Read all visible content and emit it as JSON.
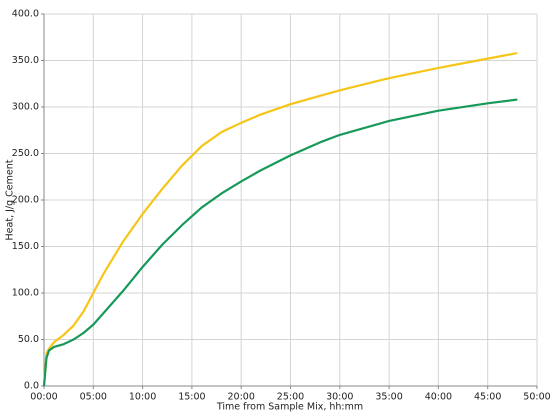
{
  "chart_data": {
    "type": "line",
    "x_label": "Time from Sample Mix, hh:mm",
    "y_label": "Heat, J/g Cement",
    "x": [
      0,
      0.25,
      0.5,
      1,
      2,
      3,
      4,
      5,
      6,
      8,
      10,
      12,
      14,
      16,
      18,
      20,
      22,
      25,
      28,
      30,
      35,
      40,
      45,
      48
    ],
    "series": [
      {
        "color": "#f5c518",
        "values": [
          0,
          35,
          40,
          47,
          55,
          65,
          80,
          100,
          120,
          155,
          185,
          212,
          237,
          258,
          273,
          283,
          292,
          303,
          312,
          318,
          331,
          342,
          352,
          358
        ]
      },
      {
        "color": "#17995a",
        "values": [
          0,
          30,
          38,
          42,
          45,
          50,
          57,
          66,
          78,
          102,
          128,
          152,
          173,
          192,
          207,
          220,
          232,
          248,
          262,
          270,
          285,
          296,
          304,
          308
        ]
      }
    ],
    "xlim": [
      0,
      50
    ],
    "xticks": [
      {
        "value": 0,
        "label": "00:00"
      },
      {
        "value": 5,
        "label": "05:00"
      },
      {
        "value": 10,
        "label": "10:00"
      },
      {
        "value": 15,
        "label": "15:00"
      },
      {
        "value": 20,
        "label": "20:00"
      },
      {
        "value": 25,
        "label": "25:00"
      },
      {
        "value": 30,
        "label": "30:00"
      },
      {
        "value": 35,
        "label": "35:00"
      },
      {
        "value": 40,
        "label": "40:00"
      },
      {
        "value": 45,
        "label": "45:00"
      },
      {
        "value": 50,
        "label": "50:00"
      }
    ],
    "ylim": [
      0,
      400
    ],
    "yticks": [
      {
        "value": 0,
        "label": "0.0"
      },
      {
        "value": 50,
        "label": "50.0"
      },
      {
        "value": 100,
        "label": "100.0"
      },
      {
        "value": 150,
        "label": "150.0"
      },
      {
        "value": 200,
        "label": "200.0"
      },
      {
        "value": 250,
        "label": "250.0"
      },
      {
        "value": 300,
        "label": "300.0"
      },
      {
        "value": 350,
        "label": "350.0"
      },
      {
        "value": 400,
        "label": "400.0"
      }
    ],
    "grid": true
  }
}
